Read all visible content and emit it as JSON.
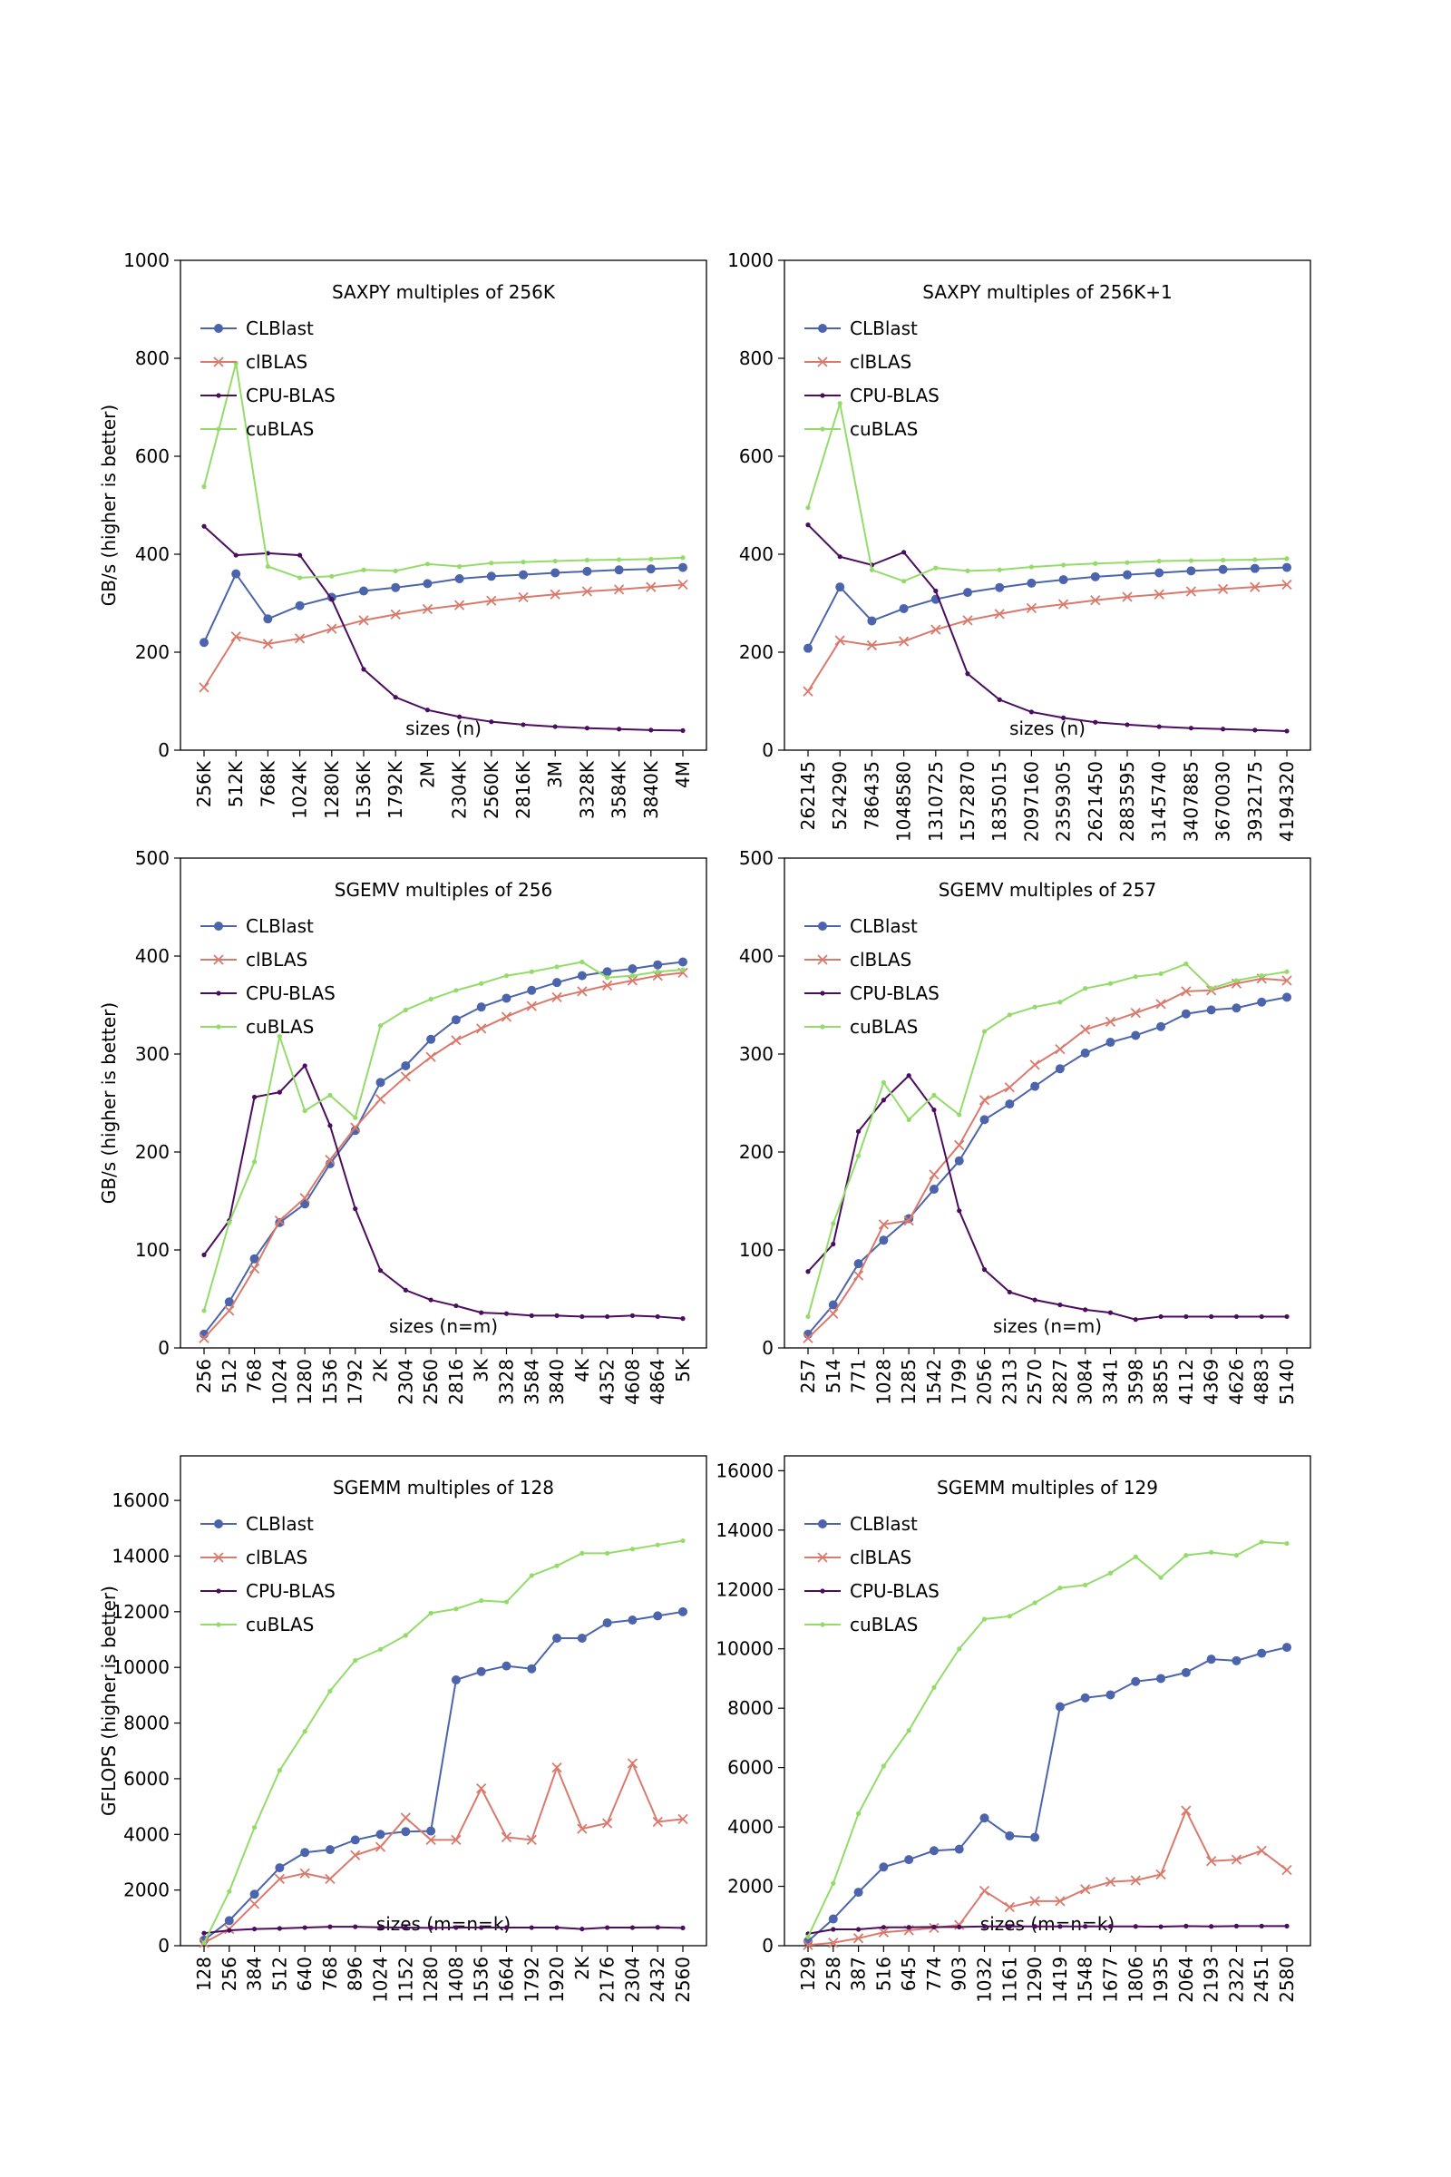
{
  "colors": {
    "CLBlast": "#4c64ab",
    "clBLAS": "#d97a6c",
    "CPU-BLAS": "#4b0d5e",
    "cuBLAS": "#94dc6a"
  },
  "chart_data": [
    {
      "type": "line",
      "title": "SAXPY multiples of 256K",
      "xlabel": "sizes (n)",
      "ylabel": "GB/s (higher is better)",
      "ylim": [
        0,
        1000
      ],
      "yticks": [
        0,
        200,
        400,
        600,
        800,
        1000
      ],
      "categories": [
        "256K",
        "512K",
        "768K",
        "1024K",
        "1280K",
        "1536K",
        "1792K",
        "2M",
        "2304K",
        "2560K",
        "2816K",
        "3M",
        "3328K",
        "3584K",
        "3840K",
        "4M"
      ],
      "legend": "upper-left",
      "series": [
        {
          "name": "CLBlast",
          "marker": "circle",
          "values": [
            220,
            360,
            268,
            295,
            312,
            325,
            332,
            340,
            350,
            355,
            358,
            362,
            365,
            368,
            370,
            373
          ]
        },
        {
          "name": "clBLAS",
          "marker": "x",
          "values": [
            128,
            232,
            217,
            228,
            248,
            265,
            277,
            288,
            296,
            305,
            312,
            318,
            324,
            328,
            333,
            338
          ]
        },
        {
          "name": "CPU-BLAS",
          "marker": "dot",
          "values": [
            457,
            398,
            402,
            398,
            308,
            165,
            108,
            82,
            68,
            58,
            52,
            48,
            45,
            43,
            41,
            40
          ]
        },
        {
          "name": "cuBLAS",
          "marker": "dot",
          "values": [
            538,
            790,
            375,
            352,
            355,
            368,
            366,
            380,
            375,
            382,
            384,
            386,
            388,
            389,
            390,
            393
          ]
        }
      ]
    },
    {
      "type": "line",
      "title": "SAXPY multiples of 256K+1",
      "xlabel": "sizes (n)",
      "ylabel": "",
      "ylim": [
        0,
        1000
      ],
      "yticks": [
        0,
        200,
        400,
        600,
        800,
        1000
      ],
      "categories": [
        "262145",
        "524290",
        "786435",
        "1048580",
        "1310725",
        "1572870",
        "1835015",
        "2097160",
        "2359305",
        "2621450",
        "2883595",
        "3145740",
        "3407885",
        "3670030",
        "3932175",
        "4194320"
      ],
      "legend": "upper-left",
      "series": [
        {
          "name": "CLBlast",
          "marker": "circle",
          "values": [
            208,
            333,
            264,
            289,
            308,
            322,
            332,
            341,
            348,
            354,
            358,
            362,
            366,
            369,
            371,
            373
          ]
        },
        {
          "name": "clBLAS",
          "marker": "x",
          "values": [
            120,
            224,
            214,
            222,
            246,
            265,
            278,
            290,
            298,
            306,
            313,
            318,
            324,
            329,
            333,
            338
          ]
        },
        {
          "name": "CPU-BLAS",
          "marker": "dot",
          "values": [
            460,
            395,
            378,
            404,
            325,
            156,
            103,
            78,
            66,
            57,
            52,
            48,
            45,
            43,
            41,
            39
          ]
        },
        {
          "name": "cuBLAS",
          "marker": "dot",
          "values": [
            495,
            708,
            368,
            345,
            372,
            366,
            368,
            374,
            378,
            381,
            383,
            386,
            387,
            388,
            389,
            391
          ]
        }
      ]
    },
    {
      "type": "line",
      "title": "SGEMV multiples of 256",
      "xlabel": "sizes (n=m)",
      "ylabel": "GB/s (higher is better)",
      "ylim": [
        0,
        500
      ],
      "yticks": [
        0,
        100,
        200,
        300,
        400,
        500
      ],
      "categories": [
        "256",
        "512",
        "768",
        "1024",
        "1280",
        "1536",
        "1792",
        "2K",
        "2304",
        "2560",
        "2816",
        "3K",
        "3328",
        "3584",
        "3840",
        "4K",
        "4352",
        "4608",
        "4864",
        "5K"
      ],
      "legend": "upper-left",
      "series": [
        {
          "name": "CLBlast",
          "marker": "circle",
          "values": [
            14,
            47,
            91,
            128,
            147,
            188,
            222,
            271,
            288,
            315,
            335,
            348,
            357,
            365,
            373,
            380,
            384,
            387,
            391,
            394
          ]
        },
        {
          "name": "clBLAS",
          "marker": "x",
          "values": [
            10,
            38,
            81,
            130,
            153,
            192,
            225,
            254,
            277,
            297,
            314,
            326,
            338,
            349,
            358,
            364,
            370,
            375,
            380,
            383
          ]
        },
        {
          "name": "CPU-BLAS",
          "marker": "dot",
          "values": [
            95,
            130,
            256,
            261,
            288,
            227,
            142,
            79,
            59,
            49,
            43,
            36,
            35,
            33,
            33,
            32,
            32,
            33,
            32,
            30
          ]
        },
        {
          "name": "cuBLAS",
          "marker": "dot",
          "values": [
            38,
            128,
            190,
            318,
            242,
            258,
            235,
            329,
            345,
            356,
            365,
            372,
            380,
            384,
            389,
            394,
            378,
            380,
            384,
            386
          ]
        }
      ]
    },
    {
      "type": "line",
      "title": "SGEMV multiples of 257",
      "xlabel": "sizes (n=m)",
      "ylabel": "",
      "ylim": [
        0,
        500
      ],
      "yticks": [
        0,
        100,
        200,
        300,
        400,
        500
      ],
      "categories": [
        "257",
        "514",
        "771",
        "1028",
        "1285",
        "1542",
        "1799",
        "2056",
        "2313",
        "2570",
        "2827",
        "3084",
        "3341",
        "3598",
        "3855",
        "4112",
        "4369",
        "4626",
        "4883",
        "5140"
      ],
      "legend": "upper-left",
      "series": [
        {
          "name": "CLBlast",
          "marker": "circle",
          "values": [
            14,
            44,
            86,
            110,
            132,
            162,
            191,
            233,
            249,
            267,
            285,
            301,
            312,
            319,
            328,
            341,
            345,
            347,
            353,
            358
          ]
        },
        {
          "name": "clBLAS",
          "marker": "x",
          "values": [
            10,
            35,
            74,
            126,
            130,
            177,
            207,
            253,
            266,
            289,
            305,
            325,
            333,
            342,
            351,
            364,
            365,
            372,
            377,
            375
          ]
        },
        {
          "name": "CPU-BLAS",
          "marker": "dot",
          "values": [
            78,
            106,
            221,
            253,
            278,
            243,
            140,
            80,
            57,
            49,
            44,
            39,
            36,
            29,
            32,
            32,
            32,
            32,
            32,
            32
          ]
        },
        {
          "name": "cuBLAS",
          "marker": "dot",
          "values": [
            32,
            127,
            196,
            271,
            233,
            258,
            238,
            323,
            340,
            348,
            353,
            367,
            372,
            379,
            382,
            392,
            367,
            375,
            380,
            384
          ]
        }
      ]
    },
    {
      "type": "line",
      "title": "SGEMM multiples of 128",
      "xlabel": "sizes (m=n=k)",
      "ylabel": "GFLOPS (higher is better)",
      "ylim": [
        0,
        17600
      ],
      "yticks": [
        0,
        2000,
        4000,
        6000,
        8000,
        10000,
        12000,
        14000,
        16000
      ],
      "categories": [
        "128",
        "256",
        "384",
        "512",
        "640",
        "768",
        "896",
        "1024",
        "1152",
        "1280",
        "1408",
        "1536",
        "1664",
        "1792",
        "1920",
        "2K",
        "2176",
        "2304",
        "2432",
        "2560"
      ],
      "legend": "upper-left",
      "series": [
        {
          "name": "CLBlast",
          "marker": "circle",
          "values": [
            200,
            900,
            1850,
            2800,
            3350,
            3450,
            3800,
            4000,
            4100,
            4120,
            9550,
            9850,
            10050,
            9950,
            11050,
            11050,
            11600,
            11700,
            11850,
            12000
          ]
        },
        {
          "name": "clBLAS",
          "marker": "x",
          "values": [
            100,
            600,
            1500,
            2400,
            2600,
            2400,
            3250,
            3550,
            4600,
            3800,
            3800,
            5650,
            3900,
            3800,
            6400,
            4200,
            4400,
            6550,
            4450,
            4550
          ]
        },
        {
          "name": "CPU-BLAS",
          "marker": "dot",
          "values": [
            450,
            550,
            600,
            620,
            650,
            680,
            680,
            660,
            650,
            640,
            650,
            650,
            650,
            650,
            650,
            600,
            650,
            650,
            660,
            640
          ]
        },
        {
          "name": "cuBLAS",
          "marker": "dot",
          "values": [
            100,
            1950,
            4250,
            6300,
            7700,
            9150,
            10250,
            10650,
            11150,
            11950,
            12100,
            12400,
            12350,
            13300,
            13650,
            14100,
            14100,
            14250,
            14400,
            14550
          ]
        }
      ]
    },
    {
      "type": "line",
      "title": "SGEMM multiples of 129",
      "xlabel": "sizes (m=n=k)",
      "ylabel": "",
      "ylim": [
        0,
        16500
      ],
      "yticks": [
        0,
        2000,
        4000,
        6000,
        8000,
        10000,
        12000,
        14000,
        16000
      ],
      "categories": [
        "129",
        "258",
        "387",
        "516",
        "645",
        "774",
        "903",
        "1032",
        "1161",
        "1290",
        "1419",
        "1548",
        "1677",
        "1806",
        "1935",
        "2064",
        "2193",
        "2322",
        "2451",
        "2580"
      ],
      "legend": "upper-left",
      "series": [
        {
          "name": "CLBlast",
          "marker": "circle",
          "values": [
            150,
            900,
            1800,
            2650,
            2900,
            3200,
            3250,
            4300,
            3700,
            3650,
            8050,
            8350,
            8450,
            8900,
            9000,
            9200,
            9650,
            9600,
            9850,
            10050
          ]
        },
        {
          "name": "clBLAS",
          "marker": "x",
          "values": [
            20,
            100,
            250,
            450,
            520,
            600,
            700,
            1850,
            1300,
            1500,
            1500,
            1900,
            2150,
            2200,
            2400,
            4550,
            2850,
            2900,
            3200,
            2550
          ]
        },
        {
          "name": "CPU-BLAS",
          "marker": "dot",
          "values": [
            400,
            550,
            550,
            620,
            620,
            630,
            630,
            650,
            650,
            650,
            650,
            650,
            650,
            650,
            640,
            660,
            650,
            660,
            660,
            660
          ]
        },
        {
          "name": "cuBLAS",
          "marker": "dot",
          "values": [
            300,
            2100,
            4450,
            6050,
            7250,
            8700,
            10000,
            11000,
            11100,
            11550,
            12050,
            12150,
            12550,
            13100,
            12400,
            13150,
            13250,
            13150,
            13600,
            13550
          ]
        }
      ]
    }
  ]
}
